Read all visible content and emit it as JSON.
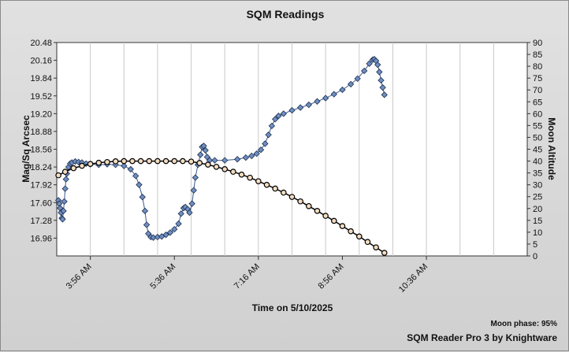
{
  "chart_data": {
    "type": "scatter",
    "title": "SQM Readings",
    "xlabel": "Time on 5/10/2025",
    "ylabel": "Mag/Sq Arcsec",
    "y2label": "Moon Altitude",
    "x_unit": "minutes after 3:16 AM",
    "xlim": [
      0,
      560
    ],
    "ylim": [
      16.64,
      20.48
    ],
    "y2lim": [
      0,
      90
    ],
    "x_ticks": [
      {
        "minute": 40,
        "label": "3:56 AM"
      },
      {
        "minute": 140,
        "label": "5:36 AM"
      },
      {
        "minute": 240,
        "label": "7:16 AM"
      },
      {
        "minute": 340,
        "label": "8:56 AM"
      },
      {
        "minute": 440,
        "label": "10:36 AM"
      }
    ],
    "y_ticks": [
      "16.96",
      "17.28",
      "17.60",
      "17.92",
      "18.24",
      "18.56",
      "18.88",
      "19.20",
      "19.52",
      "19.84",
      "20.16",
      "20.48"
    ],
    "y2_ticks": [
      "0",
      "5",
      "10",
      "15",
      "20",
      "25",
      "30",
      "35",
      "40",
      "45",
      "50",
      "55",
      "60",
      "65",
      "70",
      "75",
      "80",
      "85",
      "90"
    ],
    "grid": true,
    "series": [
      {
        "axis": "left",
        "color": "#6f8fc2",
        "marker": "diamond",
        "points": [
          [
            2,
            17.64
          ],
          [
            3,
            17.58
          ],
          [
            4,
            17.5
          ],
          [
            5,
            17.42
          ],
          [
            6,
            17.32
          ],
          [
            7,
            17.3
          ],
          [
            8,
            17.45
          ],
          [
            9,
            17.62
          ],
          [
            10,
            17.85
          ],
          [
            11,
            18.02
          ],
          [
            12,
            18.12
          ],
          [
            14,
            18.24
          ],
          [
            16,
            18.3
          ],
          [
            18,
            18.32
          ],
          [
            22,
            18.34
          ],
          [
            26,
            18.33
          ],
          [
            30,
            18.32
          ],
          [
            35,
            18.3
          ],
          [
            40,
            18.29
          ],
          [
            50,
            18.28
          ],
          [
            60,
            18.29
          ],
          [
            70,
            18.28
          ],
          [
            80,
            18.26
          ],
          [
            88,
            18.2
          ],
          [
            94,
            18.08
          ],
          [
            98,
            17.92
          ],
          [
            102,
            17.7
          ],
          [
            105,
            17.45
          ],
          [
            107,
            17.2
          ],
          [
            109,
            17.04
          ],
          [
            112,
            16.98
          ],
          [
            115,
            16.97
          ],
          [
            120,
            16.98
          ],
          [
            125,
            16.99
          ],
          [
            130,
            17.02
          ],
          [
            135,
            17.06
          ],
          [
            140,
            17.12
          ],
          [
            145,
            17.22
          ],
          [
            148,
            17.4
          ],
          [
            151,
            17.5
          ],
          [
            153,
            17.52
          ],
          [
            156,
            17.48
          ],
          [
            158,
            17.42
          ],
          [
            161,
            17.58
          ],
          [
            163,
            17.82
          ],
          [
            165,
            18.05
          ],
          [
            168,
            18.28
          ],
          [
            171,
            18.46
          ],
          [
            173,
            18.6
          ],
          [
            175,
            18.62
          ],
          [
            177,
            18.54
          ],
          [
            179,
            18.42
          ],
          [
            182,
            18.36
          ],
          [
            188,
            18.36
          ],
          [
            200,
            18.36
          ],
          [
            215,
            18.38
          ],
          [
            225,
            18.41
          ],
          [
            232,
            18.44
          ],
          [
            238,
            18.48
          ],
          [
            243,
            18.55
          ],
          [
            248,
            18.66
          ],
          [
            252,
            18.82
          ],
          [
            256,
            18.98
          ],
          [
            260,
            19.1
          ],
          [
            264,
            19.16
          ],
          [
            270,
            19.2
          ],
          [
            280,
            19.26
          ],
          [
            290,
            19.31
          ],
          [
            300,
            19.36
          ],
          [
            310,
            19.42
          ],
          [
            320,
            19.48
          ],
          [
            330,
            19.55
          ],
          [
            340,
            19.63
          ],
          [
            350,
            19.73
          ],
          [
            358,
            19.83
          ],
          [
            366,
            19.97
          ],
          [
            372,
            20.1
          ],
          [
            376,
            20.17
          ],
          [
            378,
            20.18
          ],
          [
            380,
            20.15
          ],
          [
            382,
            20.08
          ],
          [
            384,
            19.95
          ],
          [
            386,
            19.8
          ],
          [
            388,
            19.67
          ],
          [
            390,
            19.54
          ]
        ]
      },
      {
        "axis": "right",
        "color": "#f3dcc0",
        "marker": "circle",
        "points": [
          [
            2,
            34.0
          ],
          [
            10,
            35.5
          ],
          [
            20,
            37.0
          ],
          [
            30,
            38.0
          ],
          [
            40,
            38.8
          ],
          [
            50,
            39.3
          ],
          [
            60,
            39.6
          ],
          [
            70,
            39.9
          ],
          [
            80,
            40.0
          ],
          [
            90,
            40.0
          ],
          [
            100,
            40.0
          ],
          [
            110,
            40.0
          ],
          [
            120,
            40.0
          ],
          [
            130,
            40.0
          ],
          [
            140,
            40.0
          ],
          [
            150,
            40.0
          ],
          [
            160,
            39.8
          ],
          [
            170,
            39.2
          ],
          [
            180,
            38.5
          ],
          [
            190,
            37.6
          ],
          [
            200,
            36.6
          ],
          [
            210,
            35.5
          ],
          [
            220,
            34.3
          ],
          [
            230,
            33.0
          ],
          [
            240,
            31.5
          ],
          [
            250,
            30.0
          ],
          [
            260,
            28.4
          ],
          [
            270,
            26.7
          ],
          [
            280,
            24.9
          ],
          [
            290,
            23.0
          ],
          [
            300,
            21.0
          ],
          [
            310,
            19.0
          ],
          [
            320,
            16.9
          ],
          [
            330,
            14.8
          ],
          [
            340,
            12.6
          ],
          [
            350,
            10.4
          ],
          [
            360,
            8.2
          ],
          [
            370,
            5.9
          ],
          [
            380,
            3.6
          ],
          [
            390,
            1.3
          ]
        ]
      }
    ]
  },
  "footer": {
    "moon_phase": "Moon phase: 95%",
    "credit": "SQM Reader Pro 3 by Knightware"
  }
}
